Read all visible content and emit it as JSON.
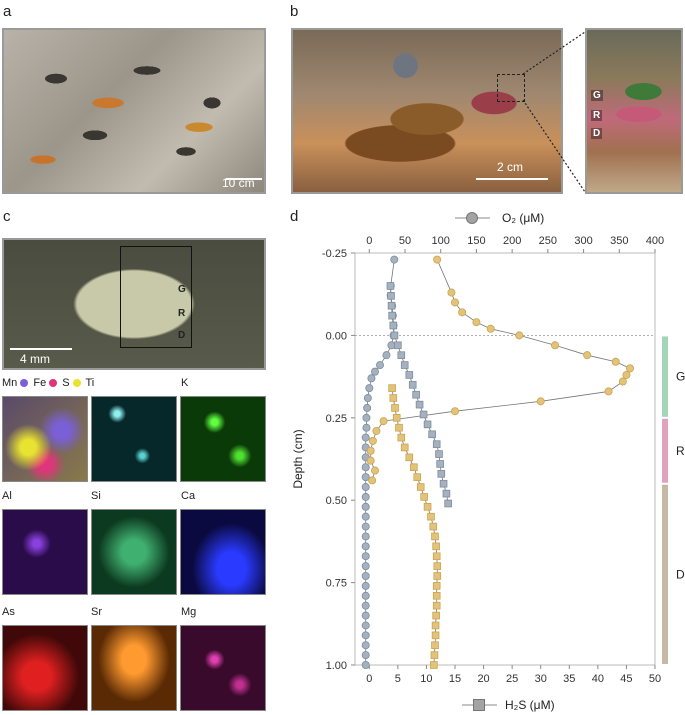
{
  "panels": {
    "a": "a",
    "b": "b",
    "c": "c",
    "d": "d"
  },
  "scale_bars": {
    "a": "10 cm",
    "b": "2 cm",
    "c": "4 mm"
  },
  "zones": {
    "g": "G",
    "r": "R",
    "d": "D"
  },
  "map_legend": {
    "mn": "Mn",
    "fe": "Fe",
    "s": "S",
    "ti": "Ti"
  },
  "map_labels": [
    "K",
    "Al",
    "Si",
    "Ca",
    "As",
    "Sr",
    "Mg"
  ],
  "colors": {
    "o2": "#e3c27a",
    "h2s": "#a3b1c0",
    "mn": "#7a5fd6",
    "fe": "#e0357a",
    "s": "#e8e230",
    "zone_g": "#a6d4b8",
    "zone_r": "#e0a3bd",
    "zone_d": "#c6b8a2"
  },
  "chart_data": {
    "type": "scatter",
    "o2_axis_label": "O₂ (μM)",
    "h2s_axis_label": "H₂S (μM)",
    "ylabel": "Depth (cm)",
    "o2_ticks": [
      0,
      50,
      100,
      150,
      200,
      250,
      300,
      350,
      400
    ],
    "h2s_ticks": [
      0,
      5,
      10,
      15,
      20,
      25,
      30,
      35,
      40,
      45,
      50
    ],
    "y_ticks": [
      "-0.25",
      "0.00",
      "0.25",
      "0.50",
      "0.75",
      "1.00"
    ],
    "o2_xlim": [
      -20,
      400
    ],
    "h2s_xlim": [
      -2.5,
      50
    ],
    "ylim": [
      -0.25,
      1.0
    ],
    "reference_line_depth": 0.0,
    "zones": [
      {
        "label": "G",
        "from": 0.0,
        "to": 0.25
      },
      {
        "label": "R",
        "from": 0.25,
        "to": 0.45
      },
      {
        "label": "D",
        "from": 0.45,
        "to": 1.0
      }
    ],
    "series": [
      {
        "name": "O₂",
        "axis": "top",
        "marker": "circle",
        "depth": [
          -0.23,
          -0.15,
          -0.12,
          -0.09,
          -0.06,
          -0.03,
          0.0,
          0.03,
          0.06,
          0.09,
          0.11,
          0.13,
          0.16,
          0.19,
          0.22,
          0.25,
          0.28,
          0.31,
          0.34,
          0.37,
          0.4,
          0.43,
          0.46,
          0.49,
          0.52,
          0.55,
          0.58,
          0.61,
          0.64,
          0.67,
          0.7,
          0.73,
          0.76,
          0.79,
          0.82,
          0.85,
          0.88,
          0.91,
          0.94,
          0.97,
          1.0
        ],
        "values": [
          35,
          30,
          30,
          32,
          33,
          34,
          34,
          31,
          24,
          15,
          8,
          3,
          0,
          -2,
          -3,
          -4,
          -4,
          -5,
          -5,
          -5,
          -5,
          -5,
          -5,
          -5,
          -5,
          -5,
          -5,
          -5,
          -5,
          -5,
          -5,
          -5,
          -5,
          -5,
          -5,
          -5,
          -5,
          -5,
          -5,
          -5,
          -5
        ]
      },
      {
        "name": "O₂",
        "axis": "top",
        "marker": "circle",
        "color_key": "o2",
        "depth": [
          -0.23,
          -0.13,
          -0.1,
          -0.07,
          -0.04,
          -0.02,
          0.0,
          0.03,
          0.06,
          0.08,
          0.1,
          0.12,
          0.14,
          0.17,
          0.2,
          0.23,
          0.26,
          0.29,
          0.32,
          0.35,
          0.38,
          0.41,
          0.44
        ],
        "values": [
          95,
          115,
          120,
          130,
          150,
          170,
          210,
          260,
          305,
          345,
          365,
          360,
          355,
          335,
          240,
          120,
          20,
          10,
          5,
          2,
          2,
          8,
          4
        ]
      },
      {
        "name": "H₂S",
        "axis": "bottom",
        "marker": "square",
        "depth": [
          -0.15,
          -0.12,
          -0.09,
          -0.06,
          -0.03,
          0.0,
          0.03,
          0.06,
          0.09,
          0.12,
          0.15,
          0.18,
          0.21,
          0.24,
          0.27,
          0.3,
          0.33,
          0.36,
          0.39,
          0.42,
          0.45,
          0.48,
          0.51
        ],
        "values": [
          3.7,
          3.8,
          3.9,
          4.0,
          4.2,
          4.4,
          5.0,
          5.6,
          6.2,
          7.0,
          7.6,
          8.2,
          8.8,
          9.5,
          10.2,
          11.0,
          11.8,
          12.2,
          12.4,
          12.6,
          13.0,
          13.5,
          13.8
        ]
      },
      {
        "name": "H₂S",
        "axis": "bottom",
        "marker": "square",
        "color_key": "h2s_b",
        "depth": [
          0.16,
          0.19,
          0.22,
          0.25,
          0.28,
          0.31,
          0.34,
          0.37,
          0.4,
          0.43,
          0.46,
          0.49,
          0.52,
          0.55,
          0.58,
          0.61,
          0.64,
          0.67,
          0.7,
          0.73,
          0.76,
          0.79,
          0.82,
          0.85,
          0.88,
          0.91,
          0.94,
          0.97,
          1.0
        ],
        "values": [
          4.0,
          4.2,
          4.5,
          4.8,
          5.2,
          5.6,
          6.2,
          7.0,
          7.8,
          8.4,
          9.0,
          9.6,
          10.2,
          10.8,
          11.2,
          11.5,
          11.7,
          11.8,
          11.9,
          11.9,
          11.8,
          11.8,
          11.8,
          11.7,
          11.6,
          11.6,
          11.5,
          11.4,
          11.3
        ]
      }
    ]
  }
}
